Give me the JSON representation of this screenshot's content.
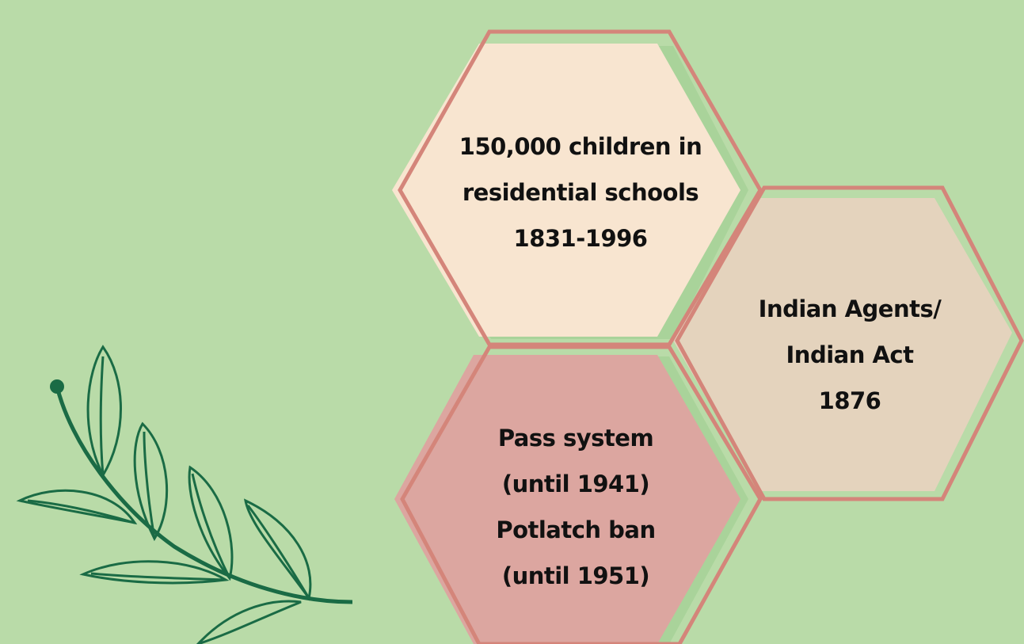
{
  "hexagons": [
    {
      "lines": [
        "150,000 children in",
        "residential schools",
        "1831-1996"
      ]
    },
    {
      "lines": [
        "Indian Agents/",
        "Indian Act",
        "1876"
      ]
    },
    {
      "lines": [
        "Pass system",
        "(until 1941)",
        "Potlatch ban",
        "(until 1951)"
      ]
    }
  ]
}
